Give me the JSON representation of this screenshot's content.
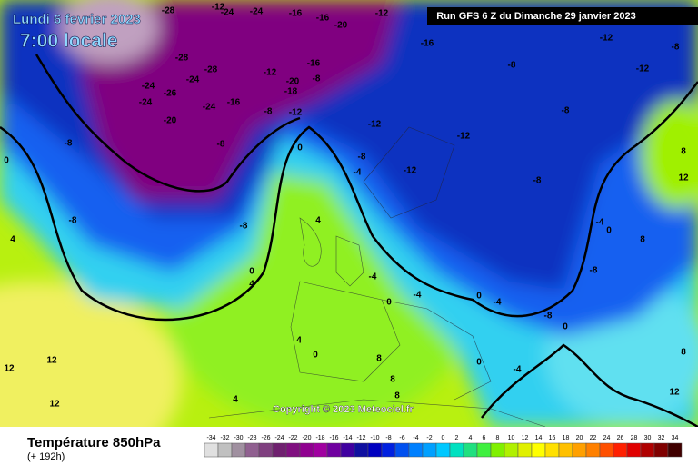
{
  "header": {
    "title": "Lundi 6 fevrier 2023",
    "time": "7:00 locale",
    "run": "Run GFS 6 Z du Dimanche 29 janvier 2023"
  },
  "copyright": "Copyright © 2023 Meteociel.fr",
  "footer": {
    "variable": "Température 850hPa",
    "lead": "(+ 192h)"
  },
  "scale": {
    "values": [
      -34,
      -32,
      -30,
      -28,
      -26,
      -24,
      -22,
      -20,
      -18,
      -16,
      -14,
      -12,
      -10,
      -8,
      -6,
      -4,
      -2,
      0,
      2,
      4,
      6,
      8,
      10,
      12,
      14,
      16,
      18,
      20,
      22,
      24,
      26,
      28,
      30,
      32,
      34
    ],
    "colors": [
      "#e0e0e0",
      "#c0c0c0",
      "#a090a0",
      "#906090",
      "#804080",
      "#702070",
      "#801080",
      "#900090",
      "#a000a0",
      "#7000a0",
      "#4000a0",
      "#1010a0",
      "#0000c0",
      "#0020e0",
      "#0050f0",
      "#0080ff",
      "#00a0ff",
      "#00c8ff",
      "#00e0c0",
      "#20e080",
      "#40f040",
      "#80f000",
      "#b0f000",
      "#e0f000",
      "#ffff00",
      "#ffe000",
      "#ffc000",
      "#ffa000",
      "#ff8000",
      "#ff5000",
      "#ff2000",
      "#e00000",
      "#b00000",
      "#800000",
      "#400000"
    ]
  },
  "contour_labels": [
    -28,
    -24,
    -16,
    -16,
    -20,
    -16,
    -12,
    -8,
    -28,
    -24,
    -26,
    -24,
    -28,
    -24,
    -20,
    -16,
    -24,
    -12,
    -16,
    -20,
    -18,
    -12,
    -8,
    -8,
    -8,
    -8,
    -12,
    -12,
    -12,
    -8,
    -8,
    -8,
    -8,
    0,
    -4,
    -8,
    -8,
    4,
    0,
    4,
    8,
    12,
    -4,
    0,
    8,
    -8,
    0,
    -4,
    -8,
    0,
    4,
    0,
    12,
    12,
    12,
    4,
    0,
    4,
    8,
    8,
    8,
    12,
    8,
    -4,
    0,
    -4,
    0,
    -4,
    -12,
    -24,
    -12,
    -8,
    -12
  ]
}
